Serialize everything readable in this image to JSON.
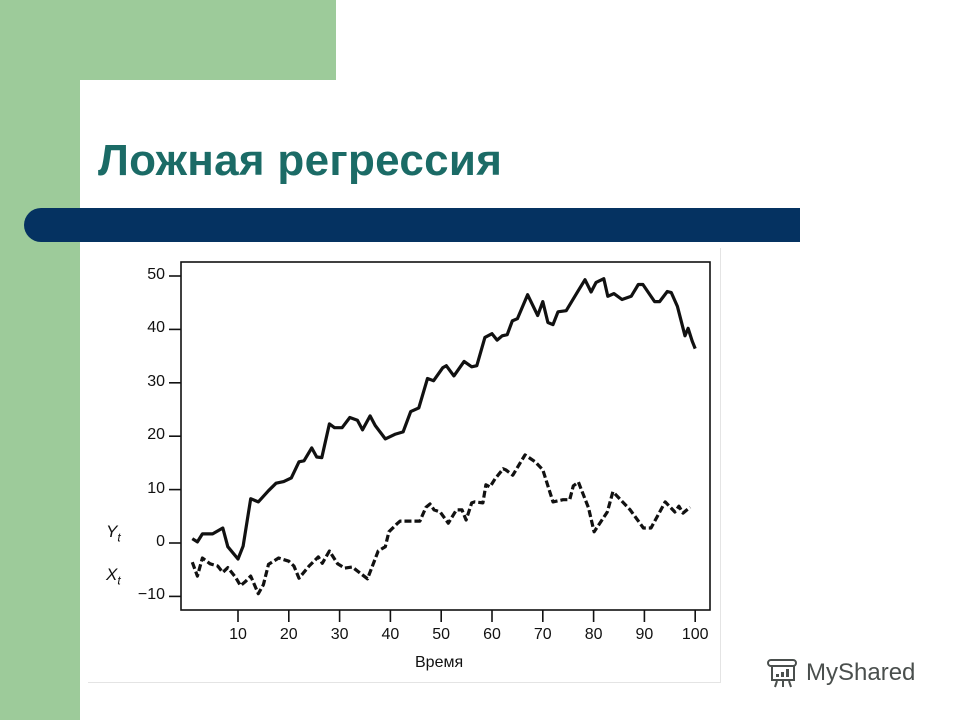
{
  "slide": {
    "title": "Ложная регрессия",
    "colors": {
      "green": "#9dcb9a",
      "title_text": "#1b6b66",
      "title_bar": "#053261",
      "watermark": "#4a4f4d"
    },
    "watermark": "MyShared"
  },
  "chart_data": {
    "type": "line",
    "title": "",
    "xlabel": "Время",
    "ylabel": "",
    "xlim": [
      0,
      100
    ],
    "ylim": [
      -12,
      52
    ],
    "x_ticks": [
      10,
      20,
      30,
      40,
      50,
      60,
      70,
      80,
      90,
      100
    ],
    "y_ticks": [
      50,
      40,
      30,
      20,
      10,
      0,
      -10
    ],
    "y_tick_labels": [
      "50",
      "40",
      "30",
      "20",
      "10",
      "0",
      "−10"
    ],
    "grid": false,
    "legend": "inline labels at left of y-axis",
    "series": [
      {
        "name": "Yt",
        "label_main": "Y",
        "label_sub": "t",
        "style": "solid",
        "points": [
          [
            1,
            0.8
          ],
          [
            2,
            0.2
          ],
          [
            3,
            1.7
          ],
          [
            5,
            1.7
          ],
          [
            7,
            2.8
          ],
          [
            8,
            -0.7
          ],
          [
            10,
            -3.0
          ],
          [
            11,
            -0.6
          ],
          [
            12.5,
            8.3
          ],
          [
            14,
            7.7
          ],
          [
            16,
            9.8
          ],
          [
            17.5,
            11.2
          ],
          [
            19,
            11.5
          ],
          [
            20.5,
            12.2
          ],
          [
            22,
            15.2
          ],
          [
            23,
            15.4
          ],
          [
            24.5,
            17.8
          ],
          [
            25.5,
            16.1
          ],
          [
            26.5,
            16.0
          ],
          [
            28,
            22.3
          ],
          [
            29,
            21.6
          ],
          [
            30.5,
            21.6
          ],
          [
            32,
            23.5
          ],
          [
            33.5,
            23.0
          ],
          [
            34.5,
            21.2
          ],
          [
            36,
            23.8
          ],
          [
            37,
            22.0
          ],
          [
            39,
            19.5
          ],
          [
            41,
            20.4
          ],
          [
            42.5,
            20.8
          ],
          [
            44,
            24.6
          ],
          [
            45.6,
            25.3
          ],
          [
            47.3,
            30.8
          ],
          [
            48.5,
            30.4
          ],
          [
            50.3,
            32.8
          ],
          [
            51,
            33.2
          ],
          [
            52.5,
            31.3
          ],
          [
            54.5,
            34.0
          ],
          [
            56,
            33.0
          ],
          [
            57,
            33.2
          ],
          [
            58.6,
            38.5
          ],
          [
            60,
            39.2
          ],
          [
            61,
            38.0
          ],
          [
            62,
            38.8
          ],
          [
            63,
            39.0
          ],
          [
            64,
            41.6
          ],
          [
            65,
            42.0
          ],
          [
            67,
            46.5
          ],
          [
            69,
            42.6
          ],
          [
            70,
            45.2
          ],
          [
            71,
            41.3
          ],
          [
            72,
            40.9
          ],
          [
            73,
            43.3
          ],
          [
            74.6,
            43.5
          ],
          [
            77,
            47.3
          ],
          [
            78.3,
            49.3
          ],
          [
            79.5,
            47.0
          ],
          [
            80.5,
            48.8
          ],
          [
            82,
            49.5
          ],
          [
            82.8,
            46.2
          ],
          [
            84,
            46.7
          ],
          [
            85.6,
            45.6
          ],
          [
            87.4,
            46.2
          ],
          [
            88.8,
            48.4
          ],
          [
            89.7,
            48.4
          ],
          [
            92,
            45.2
          ],
          [
            93,
            45.2
          ],
          [
            94.5,
            47.1
          ],
          [
            95.3,
            46.9
          ],
          [
            96.5,
            44.3
          ],
          [
            98,
            38.8
          ],
          [
            98.6,
            40.2
          ],
          [
            99.4,
            37.8
          ],
          [
            100,
            36.4
          ]
        ]
      },
      {
        "name": "Xt",
        "label_main": "X",
        "label_sub": "t",
        "style": "dashed",
        "points": [
          [
            1,
            -3.6
          ],
          [
            2,
            -6.2
          ],
          [
            3,
            -2.8
          ],
          [
            4.5,
            -3.9
          ],
          [
            6,
            -4.3
          ],
          [
            7,
            -5.5
          ],
          [
            8,
            -4.6
          ],
          [
            9.5,
            -6.4
          ],
          [
            10.5,
            -8.0
          ],
          [
            11.5,
            -7.2
          ],
          [
            12.5,
            -6.2
          ],
          [
            14,
            -9.5
          ],
          [
            15,
            -7.8
          ],
          [
            16,
            -4.0
          ],
          [
            18,
            -2.8
          ],
          [
            20,
            -3.4
          ],
          [
            21,
            -4.3
          ],
          [
            22,
            -6.6
          ],
          [
            24,
            -4.3
          ],
          [
            25.8,
            -2.6
          ],
          [
            26.6,
            -3.8
          ],
          [
            28,
            -1.5
          ],
          [
            29.6,
            -3.9
          ],
          [
            31,
            -4.7
          ],
          [
            32.5,
            -4.5
          ],
          [
            34,
            -5.6
          ],
          [
            35.5,
            -6.7
          ],
          [
            37.6,
            -1.5
          ],
          [
            39,
            -0.7
          ],
          [
            39.7,
            2.1
          ],
          [
            41.3,
            3.6
          ],
          [
            41.9,
            4.1
          ],
          [
            44.4,
            4.1
          ],
          [
            45.8,
            4.1
          ],
          [
            47,
            6.7
          ],
          [
            47.8,
            7.3
          ],
          [
            48.6,
            6.2
          ],
          [
            49.8,
            5.8
          ],
          [
            51.4,
            3.7
          ],
          [
            53,
            6.2
          ],
          [
            54.1,
            6.2
          ],
          [
            54.9,
            4.3
          ],
          [
            56,
            7.5
          ],
          [
            56.6,
            7.7
          ],
          [
            58.2,
            7.5
          ],
          [
            58.8,
            10.9
          ],
          [
            59.6,
            10.5
          ],
          [
            60.6,
            12.0
          ],
          [
            62.2,
            13.9
          ],
          [
            62.7,
            13.7
          ],
          [
            64.1,
            12.7
          ],
          [
            66.5,
            16.5
          ],
          [
            68.5,
            15.2
          ],
          [
            70,
            13.7
          ],
          [
            72,
            7.7
          ],
          [
            74,
            8.1
          ],
          [
            75.3,
            8.1
          ],
          [
            76,
            10.7
          ],
          [
            77,
            11.4
          ],
          [
            79,
            6.6
          ],
          [
            80.1,
            2.1
          ],
          [
            82.7,
            5.8
          ],
          [
            83.8,
            9.6
          ],
          [
            87.2,
            6.2
          ],
          [
            89.8,
            2.8
          ],
          [
            91.3,
            2.8
          ],
          [
            94.1,
            7.7
          ],
          [
            96,
            5.8
          ],
          [
            96.8,
            6.9
          ],
          [
            97.6,
            5.6
          ],
          [
            99,
            6.7
          ]
        ]
      }
    ]
  }
}
